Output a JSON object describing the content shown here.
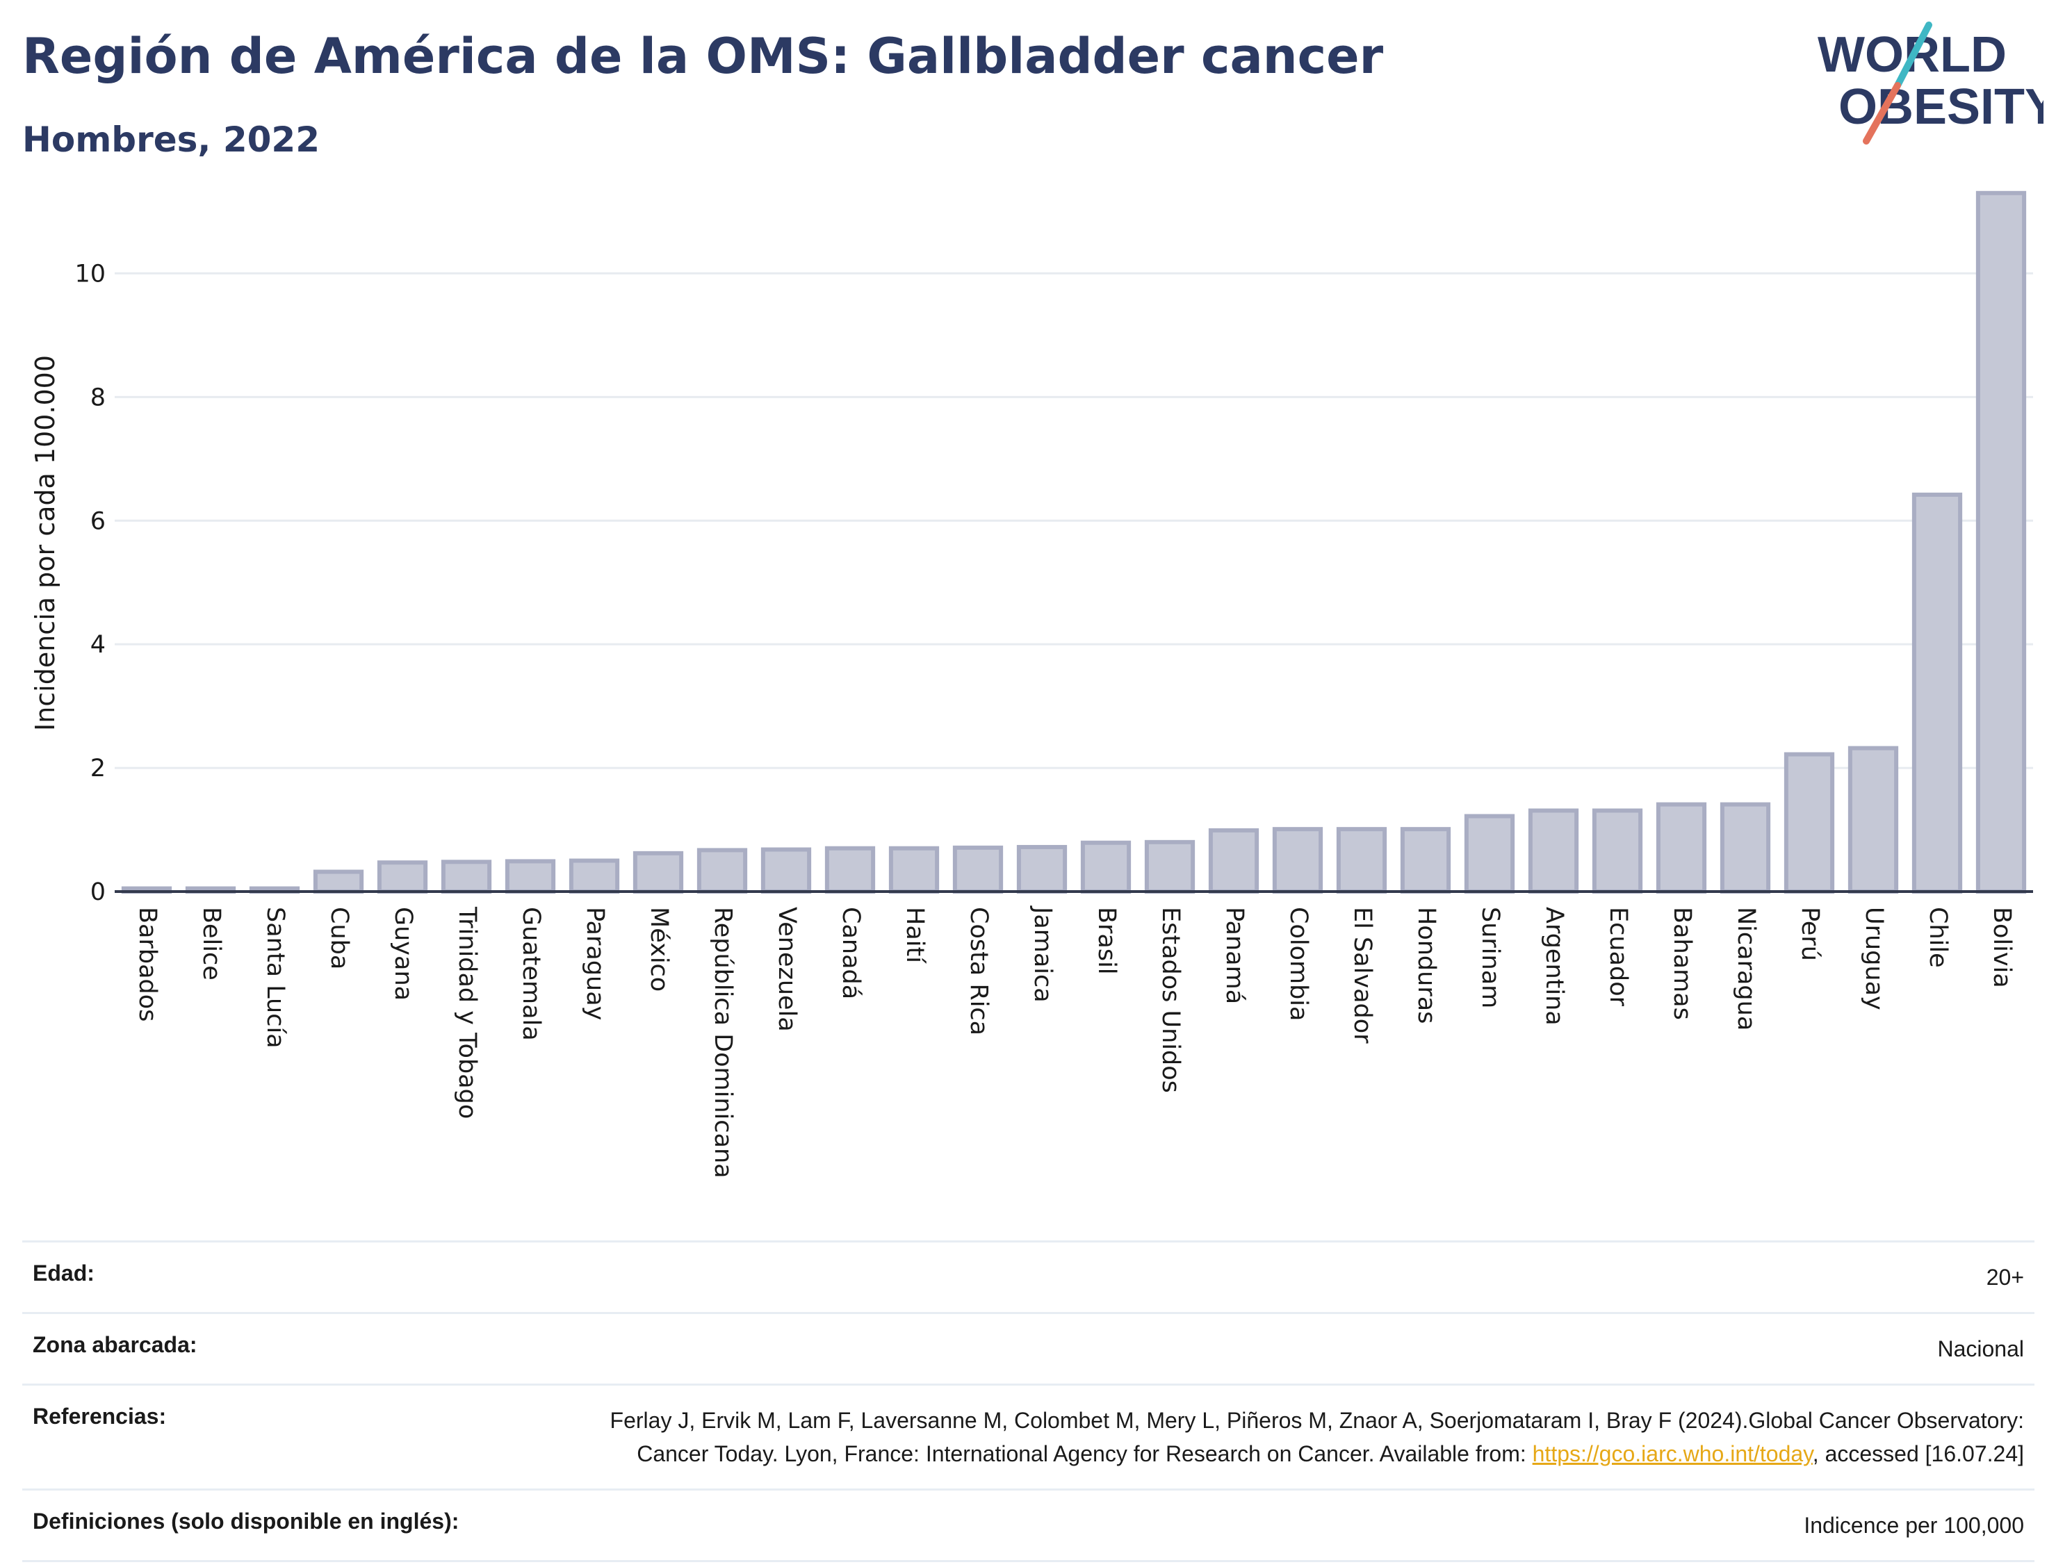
{
  "header": {
    "title": "Región de América de la OMS: Gallbladder cancer",
    "subtitle": "Hombres, 2022"
  },
  "logo": {
    "line1": "WORLD",
    "line2": "OBESITY"
  },
  "chart_data": {
    "type": "bar",
    "title": "Región de América de la OMS: Gallbladder cancer",
    "subtitle": "Hombres, 2022",
    "ylabel": "Incidencia por cada 100.000",
    "xlabel": "",
    "ylim": [
      0,
      11.5
    ],
    "yticks": [
      0,
      2,
      4,
      6,
      8,
      10
    ],
    "grid": true,
    "categories": [
      "Barbados",
      "Belice",
      "Santa Lucía",
      "Cuba",
      "Guyana",
      "Trinidad y Tobago",
      "Guatemala",
      "Paraguay",
      "México",
      "República Dominicana",
      "Venezuela",
      "Canadá",
      "Haití",
      "Costa Rica",
      "Jamaica",
      "Brasil",
      "Estados Unidos",
      "Panamá",
      "Colombia",
      "El Salvador",
      "Honduras",
      "Surinam",
      "Argentina",
      "Ecuador",
      "Bahamas",
      "Nicaragua",
      "Perú",
      "Uruguay",
      "Chile",
      "Bolivia"
    ],
    "values": [
      0.05,
      0.05,
      0.05,
      0.32,
      0.47,
      0.48,
      0.49,
      0.5,
      0.62,
      0.67,
      0.68,
      0.7,
      0.7,
      0.71,
      0.72,
      0.79,
      0.8,
      0.99,
      1.01,
      1.01,
      1.01,
      1.22,
      1.31,
      1.31,
      1.41,
      1.41,
      2.22,
      2.32,
      6.42,
      11.3
    ],
    "colors": {
      "bar_fill": "#c5c8d6",
      "bar_stroke": "#a9adc3",
      "grid": "#e7ebf0",
      "axis": "#333a4d"
    }
  },
  "metadata": {
    "rows": [
      {
        "label": "Edad:",
        "value": "20+"
      },
      {
        "label": "Zona abarcada:",
        "value": "Nacional"
      },
      {
        "label": "Referencias:",
        "value_pre": "Ferlay J, Ervik M, Lam F, Laversanne M, Colombet M, Mery L, Piñeros M, Znaor A, Soerjomataram I, Bray F (2024).Global Cancer Observatory: Cancer Today. Lyon, France: International Agency for Research on Cancer. Available from: ",
        "link": "https://gco.iarc.who.int/today",
        "value_post": ", accessed [16.07.24]"
      },
      {
        "label": "Definiciones (solo disponible en inglés):",
        "value": "Indicence per 100,000"
      }
    ]
  }
}
